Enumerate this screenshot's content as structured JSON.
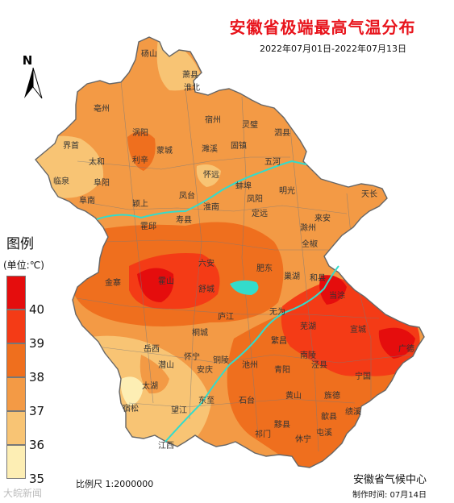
{
  "title": "安徽省极端最高气温分布",
  "date_range": "2022年07月01日-2022年07月13日",
  "north_label": "N",
  "legend": {
    "title": "图例",
    "unit": "(单位:℃)",
    "ticks": [
      "40",
      "39",
      "38",
      "37",
      "36",
      "35"
    ],
    "classes": [
      {
        "range": ">40",
        "color": "#e50d0d"
      },
      {
        "range": "39-40",
        "color": "#f43b16"
      },
      {
        "range": "38-39",
        "color": "#ef6f1e"
      },
      {
        "range": "37-38",
        "color": "#f39a45"
      },
      {
        "range": "36-37",
        "color": "#f8c474"
      },
      {
        "range": "35-36",
        "color": "#fdeeb4"
      }
    ]
  },
  "scale_label": "比例尺 1:2000000",
  "organization": "安徽省气候中心",
  "made_time": "制作时间: 07月14日",
  "watermark": "大皖新闻",
  "map_labels": {
    "dangshan": "砀山",
    "xiaoxian": "萧县",
    "huaibei": "淮北",
    "suzhou": "宿州",
    "lingbi": "灵璧",
    "sixian": "泗县",
    "bozhou": "亳州",
    "guoyang": "涡阳",
    "mengcheng": "蒙城",
    "suixi": "濉溪",
    "guzhen": "固镇",
    "wuhe": "五河",
    "jieshou": "界首",
    "taihe": "太和",
    "lixin": "利辛",
    "huaiyuan": "怀远",
    "linquan": "临泉",
    "fuyang": "阜阳",
    "funan": "阜南",
    "yingshang": "颖上",
    "fengtai": "凤台",
    "huainan": "淮南",
    "bengbu": "蚌埠",
    "fengyang": "凤阳",
    "mingguang": "明光",
    "tianchang": "天长",
    "shouxian": "寿县",
    "dingyuan": "定远",
    "laian": "来安",
    "chuzhou": "滁州",
    "huoqiu": "霍邱",
    "quanjiao": "全椒",
    "jinzhai": "金寨",
    "luan": "六安",
    "feidong": "肥东",
    "huoshan": "霍山",
    "shucheng": "舒城",
    "chaohu": "巢湖",
    "hexian": "和县",
    "dangtu": "当涂",
    "lujiang": "庐江",
    "wuwei": "无为",
    "wuhu": "芜湖",
    "xuancheng": "宣城",
    "guangde": "广德",
    "yuexi": "岳西",
    "tongcheng": "桐城",
    "fanchang": "繁昌",
    "qianshan": "潜山",
    "huaining": "怀宁",
    "anqing": "安庆",
    "tongling": "铜陵",
    "nanling": "南陵",
    "jingxian": "泾县",
    "jingde": "旌德",
    "ningguo": "宁国",
    "taihu": "太湖",
    "susong": "宿松",
    "wangjiang": "望江",
    "dongzhi": "东至",
    "chizhou": "池州",
    "qingyang": "青阳",
    "shitai": "石台",
    "huangshan": "黄山",
    "jixi": "绩溪",
    "yixian": "黟县",
    "qimen": "祁门",
    "xiuning": "休宁",
    "shexian": "歙县",
    "tunxi": "屯溪",
    "jiangxi": "江西"
  }
}
